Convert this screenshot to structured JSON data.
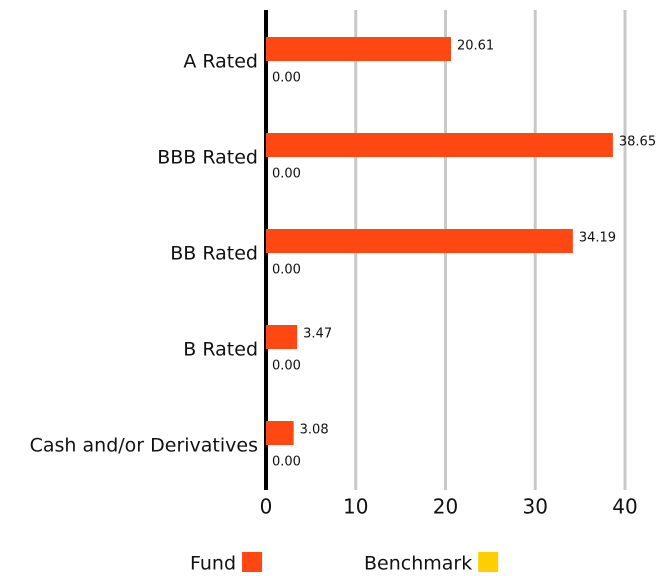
{
  "chart_data": {
    "type": "barh",
    "categories": [
      "A Rated",
      "BBB Rated",
      "BB Rated",
      "B Rated",
      "Cash and/or Derivatives"
    ],
    "series": [
      {
        "name": "Fund",
        "color": "#ff4713",
        "values": [
          20.61,
          38.65,
          34.19,
          3.47,
          3.08
        ]
      },
      {
        "name": "Benchmark",
        "color": "#ffce00",
        "values": [
          0,
          0,
          0,
          0,
          0
        ],
        "value_labels": [
          "0.00",
          "0.00",
          "0.00",
          "0.00",
          "0.00"
        ]
      }
    ],
    "xlim": [
      0,
      40
    ],
    "xticks": [
      0,
      10,
      20,
      30,
      40
    ],
    "grid": true,
    "legend": "bottom"
  }
}
